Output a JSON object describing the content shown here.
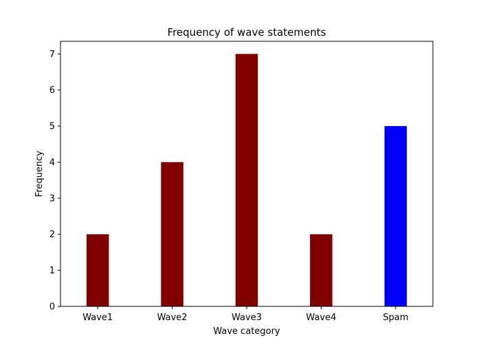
{
  "chart_data": {
    "type": "bar",
    "title": "Frequency of wave statements",
    "xlabel": "Wave category",
    "ylabel": "Frequency",
    "categories": [
      "Wave1",
      "Wave2",
      "Wave3",
      "Wave4",
      "Spam"
    ],
    "values": [
      2,
      4,
      7,
      2,
      5
    ],
    "bar_colors": [
      "#800000",
      "#800000",
      "#800000",
      "#800000",
      "#0000ff"
    ],
    "ylim": [
      0,
      7.35
    ],
    "yticks": [
      0,
      1,
      2,
      3,
      4,
      5,
      6,
      7
    ],
    "grid": false,
    "legend": null
  }
}
